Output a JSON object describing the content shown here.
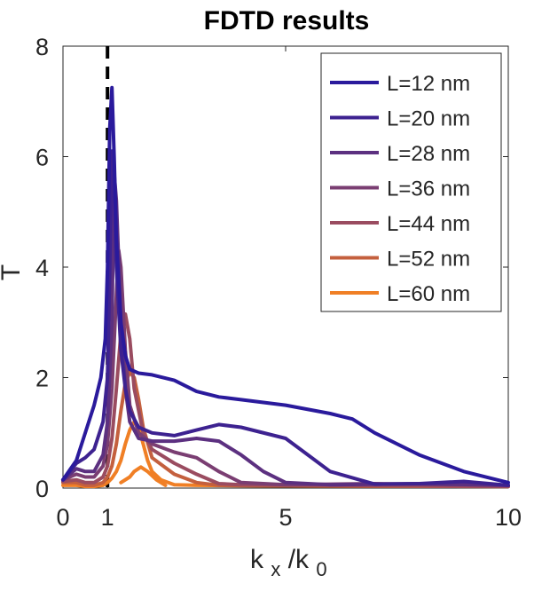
{
  "chart_data": {
    "type": "line",
    "title": "FDTD results",
    "xlabel_main": "k",
    "xlabel_sub1": "x",
    "xlabel_mid": "/k",
    "xlabel_sub2": "0",
    "ylabel": "T",
    "xlim": [
      0,
      10
    ],
    "ylim": [
      0,
      8
    ],
    "xticks": [
      0,
      1,
      5,
      10
    ],
    "xtick_labels": [
      "0",
      "1",
      "5",
      "10"
    ],
    "yticks": [
      0,
      2,
      4,
      6,
      8
    ],
    "ytick_labels": [
      "0",
      "2",
      "4",
      "6",
      "8"
    ],
    "reference_line_x": 1,
    "legend_position": "top-right",
    "series": [
      {
        "name": "L=12 nm",
        "color": "#2a1a9c",
        "x": [
          0,
          0.3,
          0.5,
          0.7,
          0.85,
          0.95,
          1.0,
          1.05,
          1.1,
          1.15,
          1.2,
          1.3,
          1.4,
          1.5,
          1.7,
          2.0,
          2.5,
          3.0,
          3.5,
          4.0,
          5.0,
          6.0,
          6.5,
          7.0,
          8.0,
          9.0,
          10.0
        ],
        "y": [
          0.15,
          0.5,
          1.0,
          1.5,
          2.0,
          2.7,
          4.0,
          6.5,
          7.25,
          6.0,
          4.5,
          3.0,
          2.4,
          2.15,
          2.08,
          2.05,
          1.95,
          1.75,
          1.65,
          1.6,
          1.5,
          1.35,
          1.25,
          1.0,
          0.6,
          0.3,
          0.1
        ]
      },
      {
        "name": "L=20 nm",
        "color": "#3d2290",
        "x": [
          0,
          0.3,
          0.5,
          0.7,
          0.9,
          1.0,
          1.05,
          1.1,
          1.15,
          1.2,
          1.3,
          1.4,
          1.5,
          1.7,
          2.0,
          2.5,
          3.0,
          3.5,
          4.0,
          5.0,
          5.5,
          6.0,
          7.0,
          8.0,
          9.0,
          10.0
        ],
        "y": [
          0.15,
          0.45,
          0.55,
          0.7,
          1.2,
          2.0,
          4.0,
          6.1,
          5.5,
          4.0,
          2.5,
          1.8,
          1.4,
          1.1,
          1.0,
          0.95,
          1.05,
          1.15,
          1.1,
          0.9,
          0.6,
          0.3,
          0.07,
          0.08,
          0.12,
          0.05
        ]
      },
      {
        "name": "L=28 nm",
        "color": "#5c3080",
        "x": [
          0,
          0.3,
          0.5,
          0.7,
          0.9,
          1.0,
          1.1,
          1.15,
          1.2,
          1.3,
          1.4,
          1.5,
          1.7,
          2.0,
          2.5,
          3.0,
          3.5,
          4.0,
          4.5,
          5.0,
          6.0,
          8.0,
          10.0
        ],
        "y": [
          0.15,
          0.35,
          0.3,
          0.3,
          0.6,
          1.2,
          3.0,
          5.7,
          5.2,
          3.0,
          1.8,
          1.2,
          0.9,
          0.85,
          0.85,
          0.9,
          0.85,
          0.6,
          0.3,
          0.1,
          0.06,
          0.08,
          0.05
        ]
      },
      {
        "name": "L=36 nm",
        "color": "#7a3e72",
        "x": [
          0,
          0.3,
          0.5,
          0.7,
          0.9,
          1.0,
          1.1,
          1.2,
          1.25,
          1.3,
          1.4,
          1.5,
          1.7,
          2.0,
          2.5,
          3.0,
          3.5,
          4.0,
          5.0,
          7.0,
          10.0
        ],
        "y": [
          0.15,
          0.25,
          0.2,
          0.2,
          0.4,
          0.8,
          1.8,
          3.5,
          4.3,
          4.0,
          2.5,
          1.5,
          1.0,
          0.8,
          0.65,
          0.55,
          0.3,
          0.1,
          0.06,
          0.08,
          0.05
        ]
      },
      {
        "name": "L=44 nm",
        "color": "#9a4c60",
        "x": [
          0,
          0.3,
          0.5,
          0.7,
          0.9,
          1.0,
          1.1,
          1.2,
          1.3,
          1.4,
          1.5,
          1.6,
          1.8,
          2.0,
          2.5,
          3.0,
          3.5,
          4.0,
          6.0,
          10.0
        ],
        "y": [
          0.12,
          0.15,
          0.1,
          0.1,
          0.2,
          0.4,
          0.9,
          1.8,
          2.8,
          3.15,
          2.7,
          1.8,
          1.0,
          0.7,
          0.45,
          0.25,
          0.08,
          0.06,
          0.05,
          0.03
        ]
      },
      {
        "name": "L=52 nm",
        "color": "#c4603e",
        "x": [
          0,
          0.3,
          0.5,
          0.7,
          0.9,
          1.0,
          1.1,
          1.2,
          1.3,
          1.4,
          1.5,
          1.6,
          1.7,
          1.8,
          2.0,
          2.5,
          3.0,
          3.5,
          5.0,
          10.0
        ],
        "y": [
          0.1,
          0.1,
          0.05,
          0.05,
          0.1,
          0.2,
          0.4,
          0.8,
          1.4,
          1.9,
          2.1,
          2.0,
          1.6,
          1.1,
          0.55,
          0.25,
          0.1,
          0.05,
          0.04,
          0.03
        ]
      },
      {
        "name": "L=60 nm",
        "color": "#f07f25",
        "x": [
          0,
          0.3,
          0.5,
          0.7,
          0.9,
          1.0,
          1.1,
          1.2,
          1.3,
          1.4,
          1.5,
          1.6,
          1.7,
          1.8,
          1.9,
          2.0,
          2.2,
          2.5,
          3.0,
          5.0,
          10.0
        ],
        "y": [
          0.05,
          0.05,
          0.03,
          0.03,
          0.05,
          0.1,
          0.18,
          0.3,
          0.5,
          0.8,
          1.05,
          1.2,
          1.1,
          0.8,
          0.5,
          0.3,
          0.15,
          0.06,
          0.05,
          0.04,
          0.03
        ]
      }
    ],
    "overlay_series": {
      "name": "L=60 nm secondary",
      "color": "#f07f25",
      "x": [
        1.3,
        1.5,
        1.6,
        1.75,
        1.9,
        2.1,
        2.3
      ],
      "y": [
        0.1,
        0.2,
        0.3,
        0.38,
        0.3,
        0.15,
        0.05
      ]
    }
  }
}
